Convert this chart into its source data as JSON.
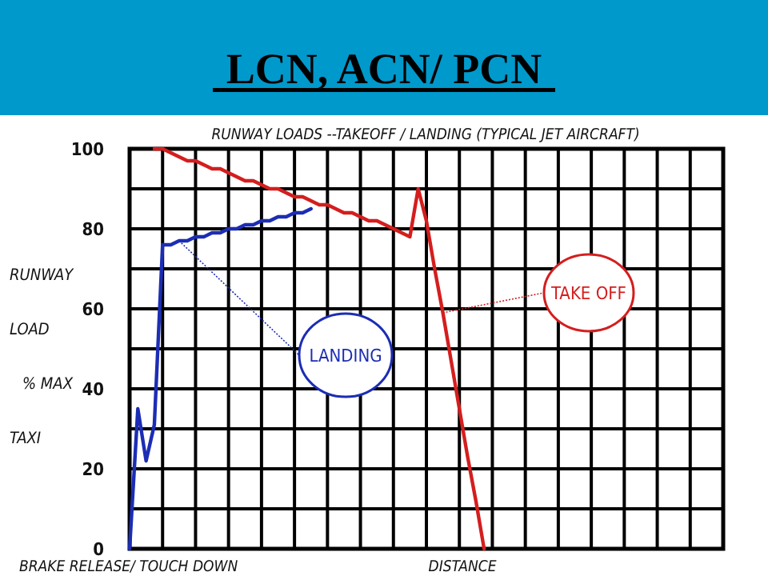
{
  "chart_data": {
    "type": "line",
    "title": "LCN, ACN/ PCN",
    "subtitle": "RUNWAY LOADS --TAKEOFF / LANDING (TYPICAL JET AIRCRAFT)",
    "ylabel": "RUNWAY LOAD % MAX TAXI",
    "xlabel": "DISTANCE",
    "annotations": [
      "BRAKE RELEASE/ TOUCH DOWN"
    ],
    "categories": [
      null,
      null,
      null,
      null,
      null,
      null,
      null,
      null,
      null,
      null,
      null,
      null,
      null,
      null,
      null,
      null,
      null,
      null,
      null,
      null,
      null,
      null,
      null,
      null,
      null,
      null,
      null,
      null,
      null,
      null,
      null,
      null,
      null,
      null,
      null,
      null,
      null,
      null,
      null,
      null,
      null,
      null,
      null,
      null,
      null,
      null,
      null,
      null,
      null,
      null,
      null,
      null,
      null,
      null,
      null,
      null,
      null,
      null,
      null,
      null,
      null,
      null,
      null,
      null,
      null,
      null,
      null,
      null,
      null,
      null,
      null,
      null,
      null
    ],
    "ylim": [
      0,
      100
    ],
    "yticks": [
      0,
      {
        "value": 10,
        "label": null
      },
      20,
      {
        "value": 30,
        "label": null
      },
      40,
      {
        "value": 50,
        "label": null
      },
      60,
      {
        "value": 70,
        "label": null
      },
      80,
      {
        "value": 90,
        "label": null
      },
      100
    ],
    "grid": true,
    "legend": false,
    "marker": "none",
    "line_style": "solid",
    "series": [
      {
        "name": "LANDING",
        "color": "#1c2db4",
        "values": [
          0,
          35,
          22,
          31,
          76,
          76,
          77,
          77,
          78,
          78,
          79,
          79,
          80,
          80,
          81,
          81,
          82,
          82,
          83,
          83,
          84,
          84,
          85,
          null,
          null,
          null,
          null,
          null,
          null,
          null,
          null,
          null,
          null,
          null,
          null,
          null,
          null,
          null,
          null,
          null,
          null,
          null,
          null,
          null,
          null,
          null,
          null,
          null,
          null,
          null,
          null,
          null,
          null,
          null,
          null,
          null,
          null,
          null,
          null,
          null,
          null,
          null,
          null,
          null,
          null,
          null,
          null,
          null,
          null,
          null,
          null,
          null,
          null
        ]
      },
      {
        "name": "TAKE OFF",
        "color": "#d41e1e",
        "values": [
          null,
          null,
          null,
          100,
          100,
          99,
          98,
          97,
          97,
          96,
          95,
          95,
          94,
          93,
          92,
          92,
          91,
          90,
          90,
          89,
          88,
          88,
          87,
          86,
          86,
          85,
          84,
          84,
          83,
          82,
          82,
          81,
          80,
          79,
          78,
          90,
          82,
          70,
          59,
          47,
          35,
          23,
          12,
          0,
          null,
          null,
          null,
          null,
          null,
          null,
          null,
          null,
          null,
          null,
          null,
          null,
          null,
          null,
          null,
          null,
          null,
          null,
          null,
          null,
          null,
          null,
          null,
          null,
          null,
          null,
          null,
          null,
          null
        ]
      }
    ]
  }
}
